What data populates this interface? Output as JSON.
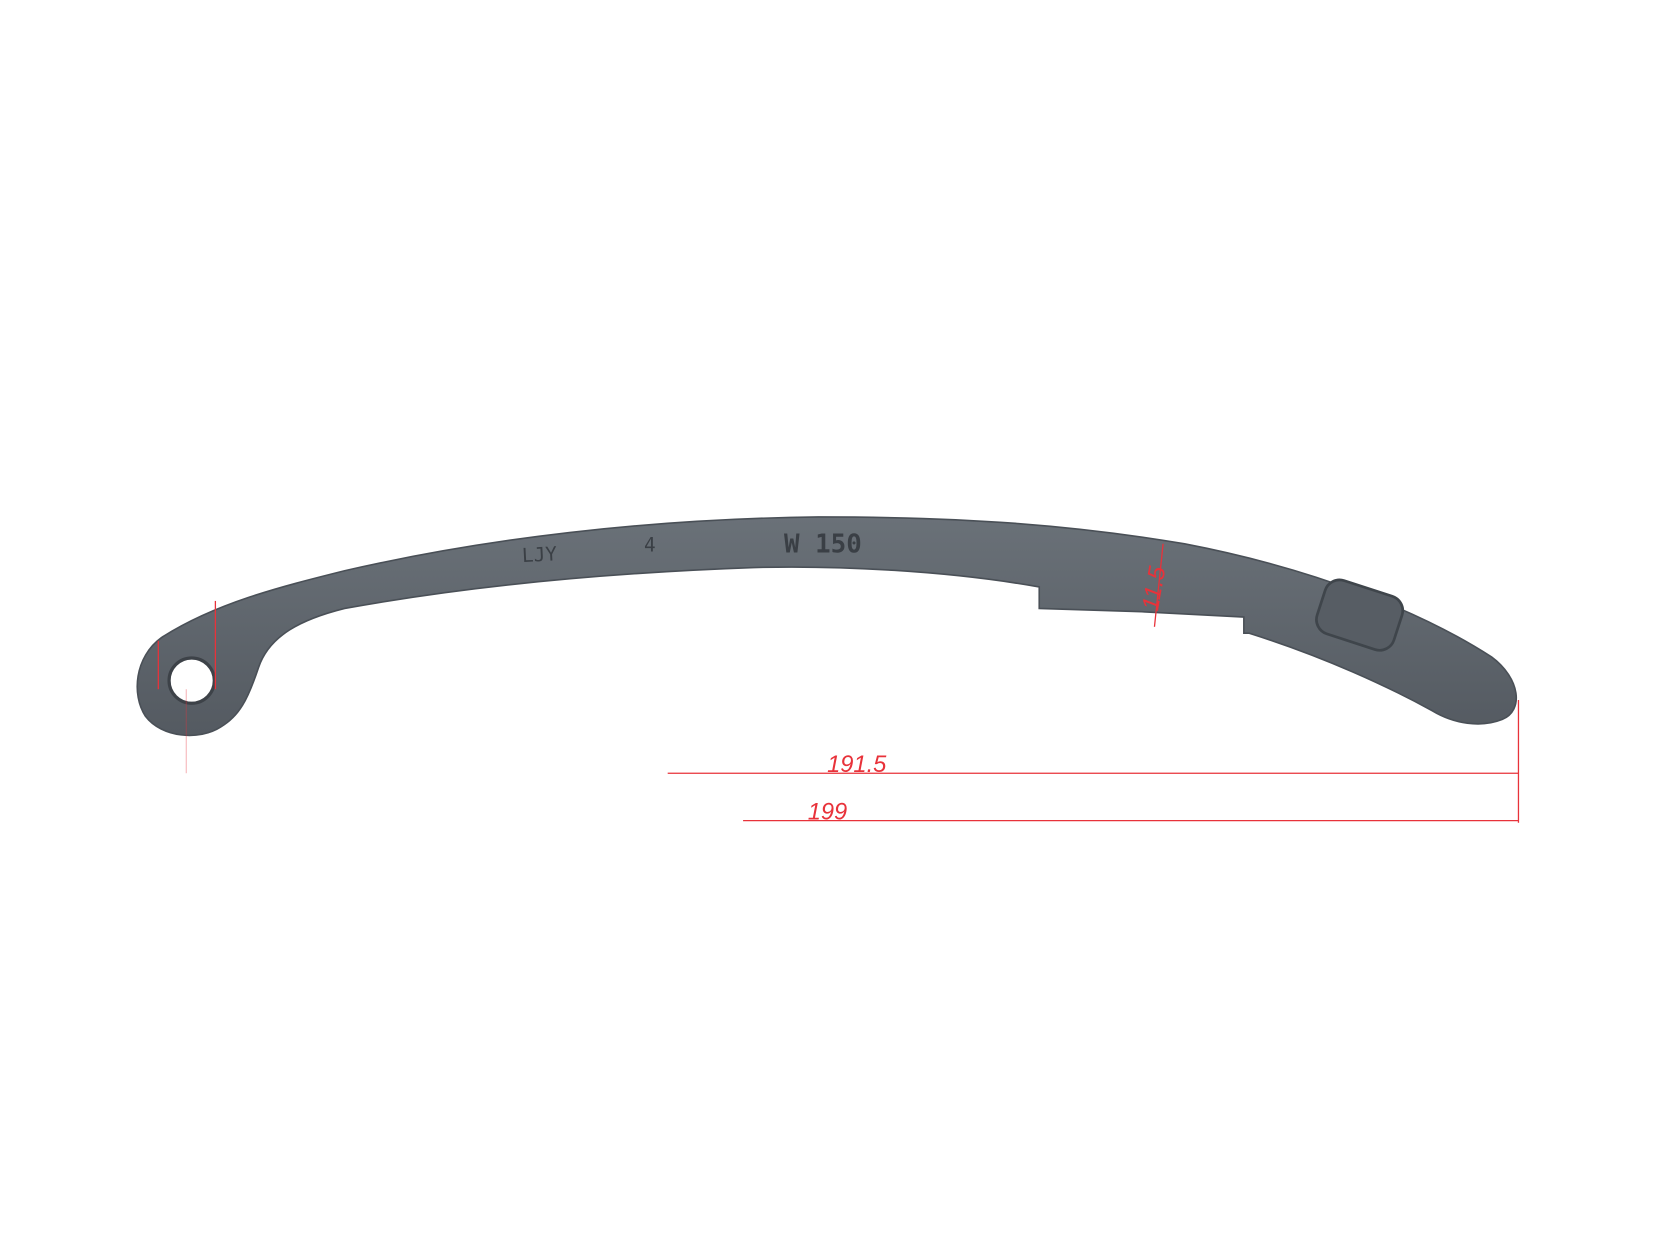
{
  "part": {
    "emboss_left": "LJY",
    "emboss_mid": "4",
    "emboss_right": "W 150",
    "body_color": "#5e656c"
  },
  "dimensions": {
    "inner_length": "191.5",
    "overall_length": "199",
    "thickness": "11.5",
    "line_color": "#e8323a"
  }
}
